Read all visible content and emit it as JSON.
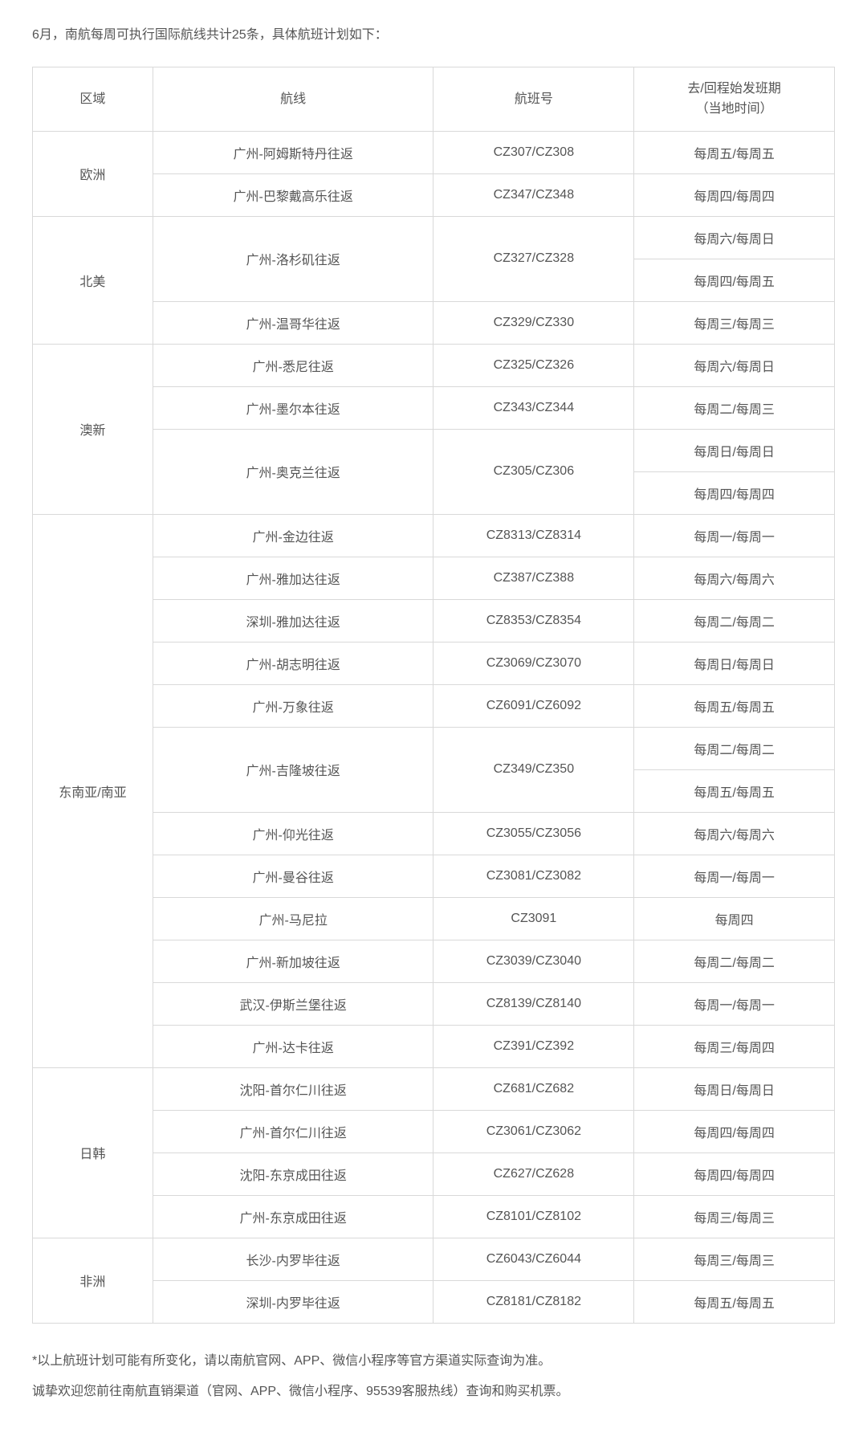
{
  "intro": "6月，南航每周可执行国际航线共计25条，具体航班计划如下：",
  "headers": {
    "region": "区域",
    "route": "航线",
    "flight": "航班号",
    "schedule_line1": "去/回程始发班期",
    "schedule_line2": "（当地时间）"
  },
  "regions": [
    {
      "name": "欧洲",
      "rows": [
        {
          "route": "广州-阿姆斯特丹往返",
          "flight": "CZ307/CZ308",
          "schedule": "每周五/每周五"
        },
        {
          "route": "广州-巴黎戴高乐往返",
          "flight": "CZ347/CZ348",
          "schedule": "每周四/每周四"
        }
      ]
    },
    {
      "name": "北美",
      "rows": [
        {
          "route": "广州-洛杉矶往返",
          "flight": "CZ327/CZ328",
          "schedule": "每周六/每周日",
          "route_rowspan": 2,
          "flight_rowspan": 2
        },
        {
          "schedule": "每周四/每周五"
        },
        {
          "route": "广州-温哥华往返",
          "flight": "CZ329/CZ330",
          "schedule": "每周三/每周三"
        }
      ]
    },
    {
      "name": "澳新",
      "rows": [
        {
          "route": "广州-悉尼往返",
          "flight": "CZ325/CZ326",
          "schedule": "每周六/每周日"
        },
        {
          "route": "广州-墨尔本往返",
          "flight": "CZ343/CZ344",
          "schedule": "每周二/每周三"
        },
        {
          "route": "广州-奥克兰往返",
          "flight": "CZ305/CZ306",
          "schedule": "每周日/每周日",
          "route_rowspan": 2,
          "flight_rowspan": 2
        },
        {
          "schedule": "每周四/每周四"
        }
      ]
    },
    {
      "name": "东南亚/南亚",
      "rows": [
        {
          "route": "广州-金边往返",
          "flight": "CZ8313/CZ8314",
          "schedule": "每周一/每周一"
        },
        {
          "route": "广州-雅加达往返",
          "flight": "CZ387/CZ388",
          "schedule": "每周六/每周六"
        },
        {
          "route": "深圳-雅加达往返",
          "flight": "CZ8353/CZ8354",
          "schedule": "每周二/每周二"
        },
        {
          "route": "广州-胡志明往返",
          "flight": "CZ3069/CZ3070",
          "schedule": "每周日/每周日"
        },
        {
          "route": "广州-万象往返",
          "flight": "CZ6091/CZ6092",
          "schedule": "每周五/每周五"
        },
        {
          "route": "广州-吉隆坡往返",
          "flight": "CZ349/CZ350",
          "schedule": "每周二/每周二",
          "route_rowspan": 2,
          "flight_rowspan": 2
        },
        {
          "schedule": "每周五/每周五"
        },
        {
          "route": "广州-仰光往返",
          "flight": "CZ3055/CZ3056",
          "schedule": "每周六/每周六"
        },
        {
          "route": "广州-曼谷往返",
          "flight": "CZ3081/CZ3082",
          "schedule": "每周一/每周一"
        },
        {
          "route": "广州-马尼拉",
          "flight": "CZ3091",
          "schedule": "每周四"
        },
        {
          "route": "广州-新加坡往返",
          "flight": "CZ3039/CZ3040",
          "schedule": "每周二/每周二"
        },
        {
          "route": "武汉-伊斯兰堡往返",
          "flight": "CZ8139/CZ8140",
          "schedule": "每周一/每周一"
        },
        {
          "route": "广州-达卡往返",
          "flight": "CZ391/CZ392",
          "schedule": "每周三/每周四"
        }
      ]
    },
    {
      "name": "日韩",
      "rows": [
        {
          "route": "沈阳-首尔仁川往返",
          "flight": "CZ681/CZ682",
          "schedule": "每周日/每周日"
        },
        {
          "route": "广州-首尔仁川往返",
          "flight": "CZ3061/CZ3062",
          "schedule": "每周四/每周四"
        },
        {
          "route": "沈阳-东京成田往返",
          "flight": "CZ627/CZ628",
          "schedule": "每周四/每周四"
        },
        {
          "route": "广州-东京成田往返",
          "flight": "CZ8101/CZ8102",
          "schedule": "每周三/每周三"
        }
      ]
    },
    {
      "name": "非洲",
      "rows": [
        {
          "route": "长沙-内罗毕往返",
          "flight": "CZ6043/CZ6044",
          "schedule": "每周三/每周三"
        },
        {
          "route": "深圳-内罗毕往返",
          "flight": "CZ8181/CZ8182",
          "schedule": "每周五/每周五"
        }
      ]
    }
  ],
  "footer_line1": "*以上航班计划可能有所变化，请以南航官网、APP、微信小程序等官方渠道实际查询为准。",
  "footer_line2": "诚挚欢迎您前往南航直销渠道（官网、APP、微信小程序、95539客服热线）查询和购买机票。"
}
